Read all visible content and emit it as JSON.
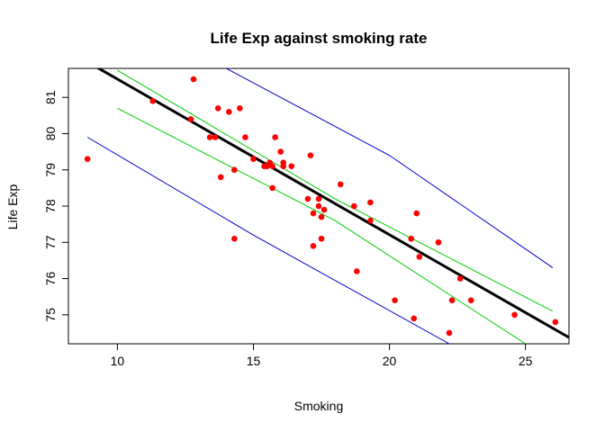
{
  "chart_data": {
    "type": "scatter",
    "title": "Life Exp against smoking rate",
    "xlabel": "Smoking",
    "ylabel": "Life Exp",
    "xlim": [
      8.2,
      26.6
    ],
    "ylim": [
      74.2,
      81.8
    ],
    "xticks": [
      10,
      15,
      20,
      25
    ],
    "yticks": [
      75,
      76,
      77,
      78,
      79,
      80,
      81
    ],
    "grid": false,
    "point_color": "#ff0000",
    "points": [
      [
        8.9,
        79.3
      ],
      [
        11.3,
        80.9
      ],
      [
        12.7,
        80.4
      ],
      [
        12.8,
        81.5
      ],
      [
        13.4,
        79.9
      ],
      [
        13.6,
        79.9
      ],
      [
        13.7,
        80.7
      ],
      [
        13.8,
        78.8
      ],
      [
        14.1,
        80.6
      ],
      [
        14.3,
        79.0
      ],
      [
        14.3,
        77.1
      ],
      [
        14.5,
        80.7
      ],
      [
        14.7,
        79.9
      ],
      [
        15.0,
        79.3
      ],
      [
        15.4,
        79.1
      ],
      [
        15.5,
        79.1
      ],
      [
        15.6,
        79.2
      ],
      [
        15.7,
        79.1
      ],
      [
        15.7,
        78.5
      ],
      [
        15.8,
        79.9
      ],
      [
        16.0,
        79.5
      ],
      [
        16.1,
        79.1
      ],
      [
        16.1,
        79.2
      ],
      [
        16.4,
        79.1
      ],
      [
        17.0,
        78.2
      ],
      [
        17.1,
        79.4
      ],
      [
        17.2,
        77.8
      ],
      [
        17.2,
        76.9
      ],
      [
        17.4,
        78.2
      ],
      [
        17.4,
        78.0
      ],
      [
        17.5,
        77.1
      ],
      [
        17.5,
        77.7
      ],
      [
        17.6,
        77.9
      ],
      [
        18.2,
        78.6
      ],
      [
        18.7,
        78.0
      ],
      [
        18.8,
        76.2
      ],
      [
        19.3,
        78.1
      ],
      [
        19.3,
        77.6
      ],
      [
        20.2,
        75.4
      ],
      [
        20.8,
        77.1
      ],
      [
        20.9,
        74.9
      ],
      [
        21.0,
        77.8
      ],
      [
        21.1,
        76.6
      ],
      [
        21.8,
        77.0
      ],
      [
        22.2,
        74.5
      ],
      [
        22.3,
        75.4
      ],
      [
        22.6,
        76.0
      ],
      [
        23.0,
        75.4
      ],
      [
        24.6,
        75.0
      ],
      [
        26.1,
        74.8
      ]
    ],
    "fit_line": {
      "color": "#000000",
      "intercept": 85.8,
      "slope": -0.4295
    },
    "confidence_band": {
      "color": "#00cc00",
      "lower": [
        [
          10.0,
          80.7
        ],
        [
          18.0,
          77.6
        ],
        [
          25.0,
          74.2
        ]
      ],
      "upper": [
        [
          10.0,
          81.75
        ],
        [
          18.0,
          78.2
        ],
        [
          26.0,
          75.1
        ]
      ]
    },
    "prediction_band": {
      "color": "#0000cc",
      "lower": [
        [
          8.9,
          79.9
        ],
        [
          15.0,
          77.2
        ],
        [
          22.2,
          74.2
        ]
      ],
      "upper": [
        [
          14.0,
          81.8
        ],
        [
          20.0,
          79.4
        ],
        [
          26.0,
          76.3
        ]
      ]
    }
  }
}
